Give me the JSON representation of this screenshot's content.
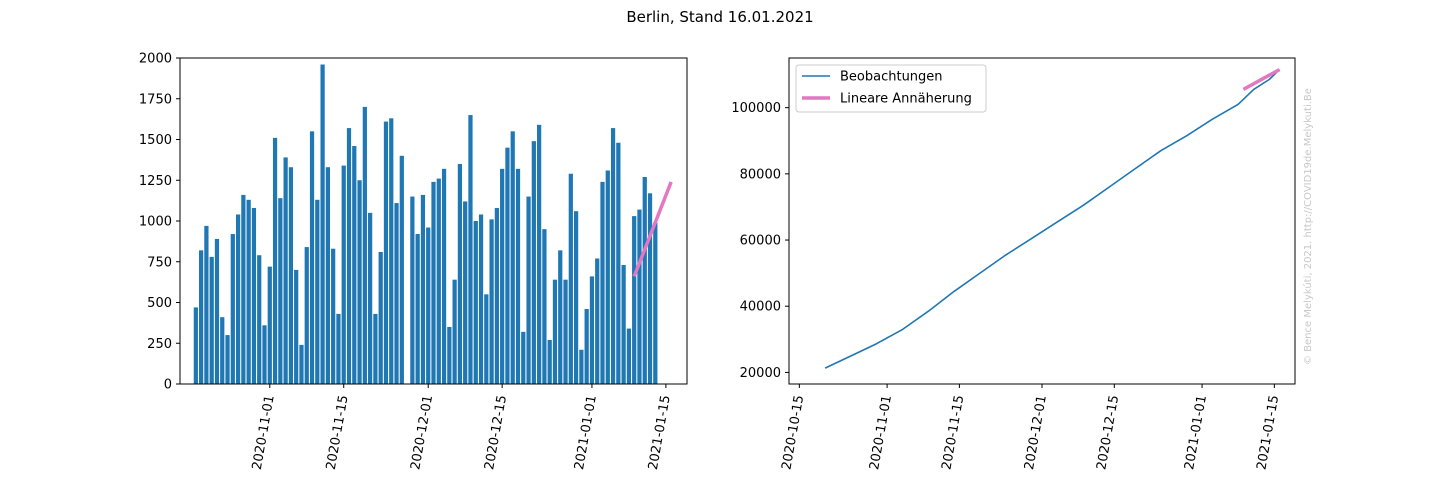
{
  "figure": {
    "title": "Berlin, Stand 16.01.2021",
    "watermark": "© Bence Melykúti, 2021. http://COVID19de.Melykuti.Be"
  },
  "chart_data": [
    {
      "type": "bar",
      "panel": "left",
      "title": "",
      "xlabel": "",
      "ylabel": "",
      "bar_color": "#1f77b4",
      "fit_color": "#e377c2",
      "start_date": "2020-10-18",
      "x_ticks": [
        "2020-11-01",
        "2020-11-15",
        "2020-12-01",
        "2020-12-15",
        "2021-01-01",
        "2021-01-15"
      ],
      "y_ticks": [
        0,
        250,
        500,
        750,
        1000,
        1250,
        1500,
        1750,
        2000
      ],
      "ylim": [
        0,
        2000
      ],
      "values": [
        470,
        820,
        970,
        780,
        890,
        410,
        300,
        920,
        1040,
        1160,
        1130,
        1080,
        790,
        360,
        720,
        1510,
        1140,
        1390,
        1330,
        700,
        240,
        840,
        1550,
        1130,
        1960,
        1330,
        830,
        430,
        1340,
        1570,
        1460,
        1250,
        1700,
        1050,
        430,
        810,
        1610,
        1630,
        1110,
        1400,
        0,
        1150,
        920,
        1160,
        960,
        1240,
        1260,
        1320,
        350,
        640,
        1350,
        1120,
        1650,
        1000,
        1040,
        550,
        1010,
        1080,
        1320,
        1450,
        1550,
        1320,
        320,
        1150,
        1490,
        1590,
        950,
        270,
        640,
        820,
        640,
        1290,
        1060,
        210,
        460,
        660,
        770,
        1240,
        1310,
        1570,
        1480,
        730,
        340,
        1030,
        1070,
        1270,
        1170,
        990
      ],
      "fit": {
        "x": [
          "2021-01-09",
          "2021-01-16"
        ],
        "y": [
          660,
          1240
        ]
      }
    },
    {
      "type": "line",
      "panel": "right",
      "title": "",
      "xlabel": "",
      "ylabel": "",
      "x_ticks": [
        "2020-10-15",
        "2020-11-01",
        "2020-11-15",
        "2020-12-01",
        "2020-12-15",
        "2021-01-01",
        "2021-01-15"
      ],
      "y_ticks": [
        20000,
        40000,
        60000,
        80000,
        100000
      ],
      "ylim": [
        16500,
        115000
      ],
      "legend": "top-left",
      "series": [
        {
          "name": "Beobachtungen",
          "color": "#1f77b4",
          "x": [
            "2020-10-20",
            "2020-10-25",
            "2020-10-30",
            "2020-11-04",
            "2020-11-09",
            "2020-11-14",
            "2020-11-19",
            "2020-11-24",
            "2020-11-29",
            "2020-12-04",
            "2020-12-09",
            "2020-12-14",
            "2020-12-19",
            "2020-12-24",
            "2020-12-29",
            "2021-01-03",
            "2021-01-08",
            "2021-01-11",
            "2021-01-14",
            "2021-01-16"
          ],
          "y": [
            21300,
            25000,
            28700,
            33000,
            38500,
            44500,
            50000,
            55500,
            60500,
            65500,
            70500,
            76000,
            81500,
            87000,
            91500,
            96500,
            101000,
            105500,
            108500,
            111500
          ]
        },
        {
          "name": "Lineare Annäherung",
          "color": "#e377c2",
          "x": [
            "2021-01-09",
            "2021-01-16"
          ],
          "y": [
            105500,
            111500
          ]
        }
      ]
    }
  ]
}
